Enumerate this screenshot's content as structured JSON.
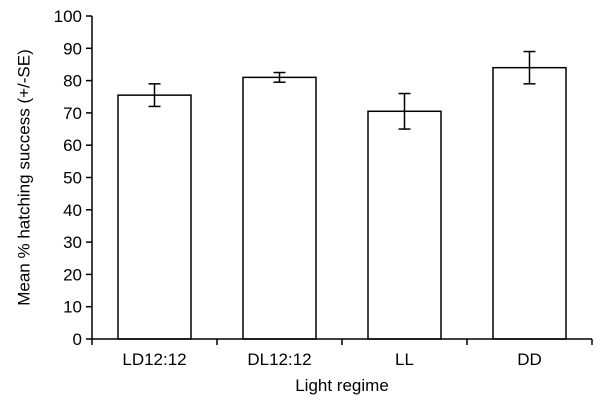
{
  "chart_data": {
    "type": "bar",
    "categories": [
      "LD12:12",
      "DL12:12",
      "LL",
      "DD"
    ],
    "values": [
      75.5,
      81,
      70.5,
      84
    ],
    "errors": [
      3.5,
      1.5,
      5.5,
      5
    ],
    "title": "",
    "xlabel": "Light regime",
    "ylabel": "Mean % hatching success (+/-SE)",
    "ylim": [
      0,
      100
    ],
    "yticks": [
      0,
      10,
      20,
      30,
      40,
      50,
      60,
      70,
      80,
      90,
      100
    ],
    "grid": false,
    "bar_fill": "#ffffff",
    "bar_stroke": "#000000"
  }
}
